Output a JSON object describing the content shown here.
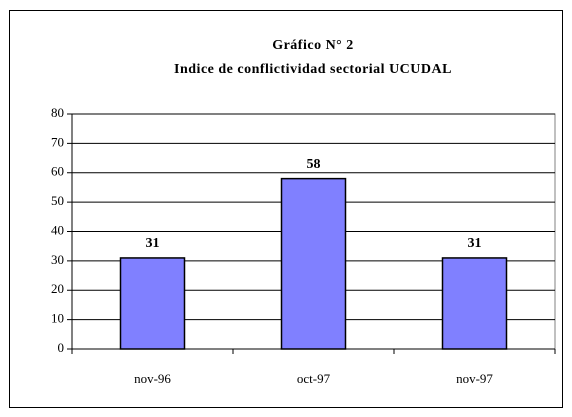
{
  "chart_data": {
    "type": "bar",
    "title": "Gráfico N° 2",
    "subtitle": "Indice de conflictividad sectorial UCUDAL",
    "categories": [
      "nov-96",
      "oct-97",
      "nov-97"
    ],
    "values": [
      31,
      58,
      31
    ],
    "color": "#8080ff",
    "ylim": [
      0,
      80
    ],
    "yticks": [
      0,
      10,
      20,
      30,
      40,
      50,
      60,
      70,
      80
    ],
    "grid": true
  }
}
